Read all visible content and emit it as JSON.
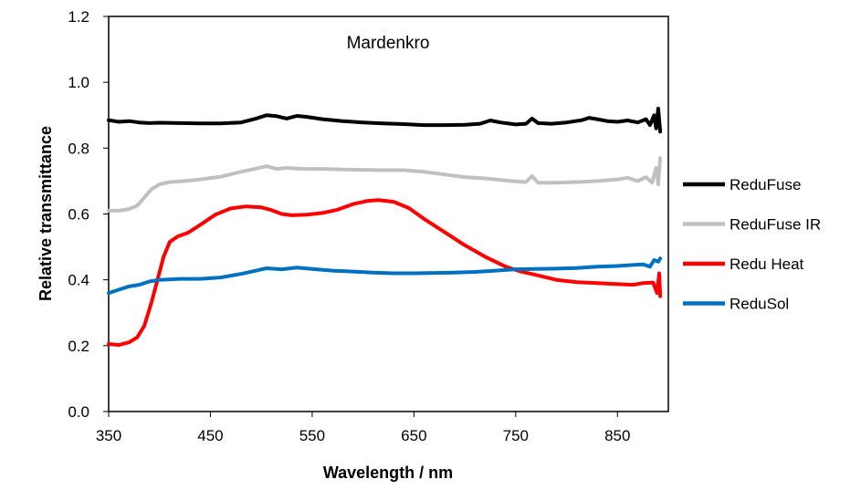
{
  "chart_data": {
    "type": "line",
    "title": "Mardenkro",
    "xlabel": "Wavelength / nm",
    "ylabel": "Relative transmittance",
    "xlim": [
      350,
      900
    ],
    "ylim": [
      0,
      1.2
    ],
    "x_ticks": [
      "350",
      "450",
      "550",
      "650",
      "750",
      "850"
    ],
    "y_ticks": [
      "0.0",
      "0.2",
      "0.4",
      "0.6",
      "0.8",
      "1.0",
      "1.2"
    ],
    "grid": false,
    "legend_position": "right",
    "series": [
      {
        "name": "ReduFuse",
        "color": "#000000",
        "points": [
          [
            350,
            0.885
          ],
          [
            360,
            0.88
          ],
          [
            370,
            0.882
          ],
          [
            380,
            0.878
          ],
          [
            390,
            0.876
          ],
          [
            400,
            0.877
          ],
          [
            420,
            0.876
          ],
          [
            440,
            0.875
          ],
          [
            460,
            0.875
          ],
          [
            480,
            0.878
          ],
          [
            495,
            0.89
          ],
          [
            505,
            0.9
          ],
          [
            515,
            0.897
          ],
          [
            525,
            0.89
          ],
          [
            535,
            0.898
          ],
          [
            545,
            0.895
          ],
          [
            560,
            0.888
          ],
          [
            580,
            0.882
          ],
          [
            600,
            0.878
          ],
          [
            620,
            0.875
          ],
          [
            640,
            0.873
          ],
          [
            660,
            0.87
          ],
          [
            680,
            0.87
          ],
          [
            700,
            0.871
          ],
          [
            715,
            0.874
          ],
          [
            725,
            0.884
          ],
          [
            735,
            0.878
          ],
          [
            750,
            0.872
          ],
          [
            760,
            0.874
          ],
          [
            766,
            0.89
          ],
          [
            772,
            0.876
          ],
          [
            785,
            0.874
          ],
          [
            800,
            0.878
          ],
          [
            815,
            0.885
          ],
          [
            822,
            0.892
          ],
          [
            830,
            0.888
          ],
          [
            840,
            0.882
          ],
          [
            850,
            0.88
          ],
          [
            860,
            0.884
          ],
          [
            870,
            0.878
          ],
          [
            878,
            0.888
          ],
          [
            882,
            0.87
          ],
          [
            886,
            0.9
          ],
          [
            888,
            0.86
          ],
          [
            890,
            0.92
          ],
          [
            892,
            0.85
          ]
        ]
      },
      {
        "name": "ReduFuse IR",
        "color": "#c0c0c0",
        "points": [
          [
            350,
            0.61
          ],
          [
            360,
            0.61
          ],
          [
            370,
            0.615
          ],
          [
            378,
            0.625
          ],
          [
            385,
            0.65
          ],
          [
            392,
            0.675
          ],
          [
            400,
            0.69
          ],
          [
            410,
            0.697
          ],
          [
            425,
            0.7
          ],
          [
            440,
            0.705
          ],
          [
            460,
            0.713
          ],
          [
            480,
            0.728
          ],
          [
            495,
            0.738
          ],
          [
            505,
            0.745
          ],
          [
            515,
            0.737
          ],
          [
            525,
            0.74
          ],
          [
            540,
            0.737
          ],
          [
            560,
            0.737
          ],
          [
            580,
            0.735
          ],
          [
            600,
            0.734
          ],
          [
            620,
            0.733
          ],
          [
            640,
            0.733
          ],
          [
            660,
            0.728
          ],
          [
            680,
            0.72
          ],
          [
            700,
            0.712
          ],
          [
            720,
            0.708
          ],
          [
            730,
            0.705
          ],
          [
            745,
            0.7
          ],
          [
            760,
            0.697
          ],
          [
            766,
            0.715
          ],
          [
            772,
            0.695
          ],
          [
            790,
            0.695
          ],
          [
            810,
            0.697
          ],
          [
            830,
            0.7
          ],
          [
            850,
            0.705
          ],
          [
            860,
            0.71
          ],
          [
            870,
            0.7
          ],
          [
            878,
            0.712
          ],
          [
            884,
            0.695
          ],
          [
            888,
            0.74
          ],
          [
            890,
            0.69
          ],
          [
            892,
            0.77
          ]
        ]
      },
      {
        "name": "Redu Heat",
        "color": "#ff0000",
        "points": [
          [
            350,
            0.205
          ],
          [
            360,
            0.202
          ],
          [
            370,
            0.21
          ],
          [
            378,
            0.225
          ],
          [
            385,
            0.26
          ],
          [
            392,
            0.33
          ],
          [
            398,
            0.4
          ],
          [
            404,
            0.47
          ],
          [
            410,
            0.515
          ],
          [
            418,
            0.532
          ],
          [
            428,
            0.543
          ],
          [
            440,
            0.567
          ],
          [
            455,
            0.598
          ],
          [
            470,
            0.617
          ],
          [
            485,
            0.623
          ],
          [
            500,
            0.62
          ],
          [
            510,
            0.612
          ],
          [
            520,
            0.6
          ],
          [
            530,
            0.596
          ],
          [
            545,
            0.598
          ],
          [
            560,
            0.603
          ],
          [
            575,
            0.613
          ],
          [
            590,
            0.63
          ],
          [
            605,
            0.64
          ],
          [
            615,
            0.642
          ],
          [
            630,
            0.637
          ],
          [
            645,
            0.618
          ],
          [
            660,
            0.585
          ],
          [
            680,
            0.545
          ],
          [
            700,
            0.505
          ],
          [
            720,
            0.47
          ],
          [
            740,
            0.44
          ],
          [
            755,
            0.425
          ],
          [
            770,
            0.415
          ],
          [
            790,
            0.4
          ],
          [
            810,
            0.393
          ],
          [
            830,
            0.39
          ],
          [
            850,
            0.387
          ],
          [
            865,
            0.385
          ],
          [
            875,
            0.39
          ],
          [
            885,
            0.392
          ],
          [
            889,
            0.36
          ],
          [
            891,
            0.42
          ],
          [
            892,
            0.35
          ]
        ]
      },
      {
        "name": "ReduSol",
        "color": "#0070c0",
        "points": [
          [
            350,
            0.36
          ],
          [
            360,
            0.37
          ],
          [
            370,
            0.38
          ],
          [
            380,
            0.385
          ],
          [
            390,
            0.395
          ],
          [
            400,
            0.4
          ],
          [
            420,
            0.403
          ],
          [
            440,
            0.403
          ],
          [
            460,
            0.407
          ],
          [
            480,
            0.418
          ],
          [
            495,
            0.428
          ],
          [
            505,
            0.435
          ],
          [
            520,
            0.432
          ],
          [
            535,
            0.437
          ],
          [
            550,
            0.433
          ],
          [
            570,
            0.428
          ],
          [
            590,
            0.425
          ],
          [
            610,
            0.422
          ],
          [
            630,
            0.42
          ],
          [
            650,
            0.42
          ],
          [
            670,
            0.421
          ],
          [
            690,
            0.422
          ],
          [
            710,
            0.424
          ],
          [
            730,
            0.428
          ],
          [
            750,
            0.432
          ],
          [
            770,
            0.433
          ],
          [
            790,
            0.434
          ],
          [
            810,
            0.436
          ],
          [
            830,
            0.44
          ],
          [
            850,
            0.442
          ],
          [
            865,
            0.445
          ],
          [
            875,
            0.447
          ],
          [
            882,
            0.44
          ],
          [
            886,
            0.46
          ],
          [
            890,
            0.455
          ],
          [
            892,
            0.465
          ]
        ]
      }
    ]
  }
}
